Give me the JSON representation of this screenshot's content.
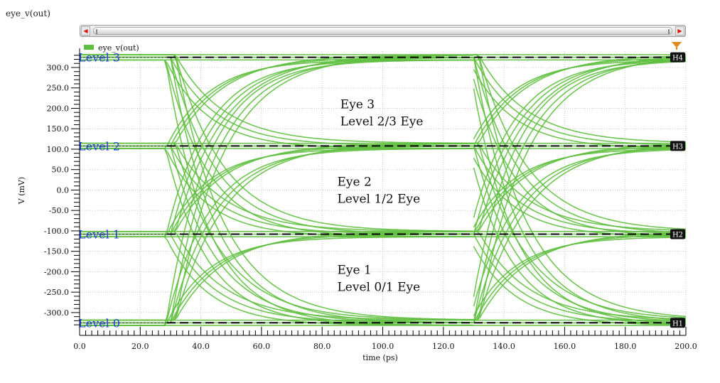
{
  "window": {
    "title": "eye_v(out)"
  },
  "colors": {
    "trace": "#5fbf3f",
    "level_label": "#1c3fd8",
    "guide": "#000000",
    "grid": "#c8c8c8"
  },
  "chart_data": {
    "type": "line",
    "title": "",
    "xlabel": "time (ps)",
    "ylabel": "V (mV)",
    "xlim": [
      0,
      200
    ],
    "ylim": [
      -335,
      340
    ],
    "grid": true,
    "legend": {
      "position": "top-left",
      "entries": [
        "eye_v(out)"
      ]
    },
    "x_ticks": [
      0,
      20,
      40,
      60,
      80,
      100,
      120,
      140,
      160,
      180,
      200
    ],
    "x_tick_labels": [
      "0.0",
      "20.0",
      "40.0",
      "60.0",
      "80.0",
      "100.0",
      "120.0",
      "140.0",
      "160.0",
      "180.0",
      "200.0"
    ],
    "y_ticks": [
      300,
      250,
      200,
      150,
      100,
      50,
      0,
      -50,
      -100,
      -150,
      -200,
      -250,
      -300
    ],
    "y_tick_labels": [
      "300.0",
      "250.0",
      "200.0",
      "150.0",
      "100.0",
      "50.0",
      "0.0",
      "-50.0",
      "-100.0",
      "-150.0",
      "-200.0",
      "-250.0",
      "-300.0"
    ],
    "levels_mV": [
      -325,
      -108,
      108,
      325
    ],
    "symbol_period_ps": 100,
    "first_transition_ps": 30,
    "crossing_times_ps": [
      47,
      147
    ],
    "level_labels": [
      "Level 0",
      "Level 1",
      "Level 2",
      "Level 3"
    ],
    "horizontal_markers": [
      {
        "name": "H1",
        "y": -325
      },
      {
        "name": "H2",
        "y": -108
      },
      {
        "name": "H3",
        "y": 108
      },
      {
        "name": "H4",
        "y": 325
      }
    ],
    "annotations": [
      {
        "line1": "Eye 3",
        "line2": "Level 2/3 Eye",
        "x": 86,
        "y": 200
      },
      {
        "line1": "Eye 2",
        "line2": "Level 1/2 Eye",
        "x": 85,
        "y": 10
      },
      {
        "line1": "Eye 1",
        "line2": "Level 0/1 Eye",
        "x": 85,
        "y": -205
      }
    ]
  }
}
